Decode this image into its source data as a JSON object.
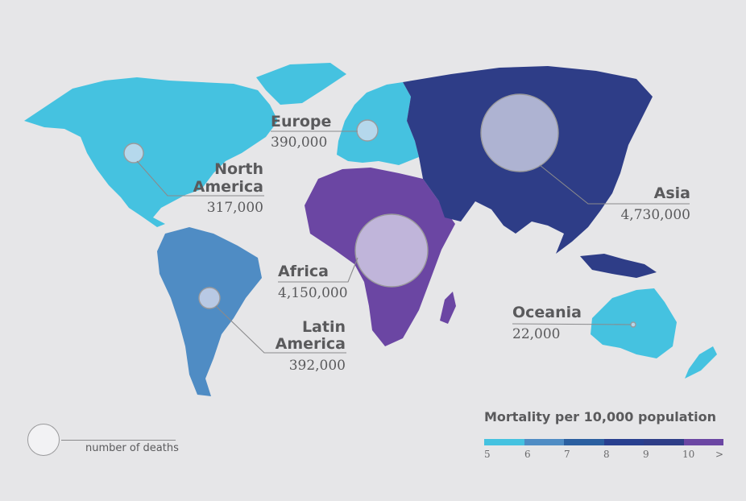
{
  "regions": {
    "north_america": {
      "name_line1": "North",
      "name_line2": "America",
      "deaths": "317,000",
      "color": "#45c2e0"
    },
    "europe": {
      "name": "Europe",
      "deaths": "390,000",
      "color": "#45c2e0"
    },
    "asia": {
      "name": "Asia",
      "deaths": "4,730,000",
      "color": "#2e3d87"
    },
    "africa": {
      "name": "Africa",
      "deaths": "4,150,000",
      "color": "#6b46a3"
    },
    "latin_america": {
      "name_line1": "Latin",
      "name_line2": "America",
      "deaths": "392,000",
      "color": "#4f8cc4"
    },
    "oceania": {
      "name": "Oceania",
      "deaths": "22,000",
      "color": "#45c2e0"
    }
  },
  "legend": {
    "title": "Mortality per 10,000 population",
    "colors": [
      "#45c2e0",
      "#4f8cc4",
      "#2b5fa0",
      "#283f8f",
      "#2e3d87",
      "#6b46a3"
    ],
    "ticks": [
      "5",
      "6",
      "7",
      "8",
      "9",
      "10",
      ">"
    ]
  },
  "size_key": {
    "label": "number of deaths"
  }
}
